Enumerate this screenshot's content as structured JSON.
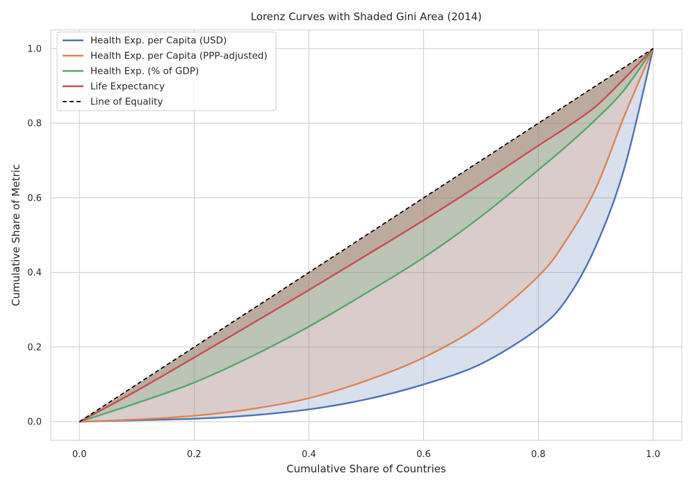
{
  "chart_data": {
    "type": "line",
    "title": "Lorenz Curves with Shaded Gini Area (2014)",
    "xlabel": "Cumulative Share of Countries",
    "ylabel": "Cumulative Share of Metric",
    "xlim": [
      -0.05,
      1.05
    ],
    "ylim": [
      -0.05,
      1.05
    ],
    "xticks": [
      "0.0",
      "0.2",
      "0.4",
      "0.6",
      "0.8",
      "1.0"
    ],
    "yticks": [
      "0.0",
      "0.2",
      "0.4",
      "0.6",
      "0.8",
      "1.0"
    ],
    "grid": true,
    "legend_position": "top-left",
    "x": [
      0.0,
      0.1,
      0.2,
      0.3,
      0.4,
      0.5,
      0.6,
      0.7,
      0.8,
      0.85,
      0.9,
      0.95,
      1.0
    ],
    "series": [
      {
        "name": "Health Exp. per Capita (USD)",
        "color": "#4c72b0",
        "fill": "#4c72b0",
        "values": [
          0.0,
          0.004,
          0.008,
          0.017,
          0.033,
          0.06,
          0.1,
          0.155,
          0.25,
          0.33,
          0.47,
          0.68,
          1.0
        ]
      },
      {
        "name": "Health Exp. per Capita (PPP-adjusted)",
        "color": "#dd8452",
        "fill": "#dd8452",
        "values": [
          0.0,
          0.006,
          0.016,
          0.034,
          0.063,
          0.11,
          0.172,
          0.26,
          0.39,
          0.49,
          0.625,
          0.82,
          1.0
        ]
      },
      {
        "name": "Health Exp. (% of GDP)",
        "color": "#55a868",
        "fill": "#55a868",
        "values": [
          0.0,
          0.05,
          0.105,
          0.175,
          0.255,
          0.345,
          0.44,
          0.55,
          0.675,
          0.74,
          0.81,
          0.89,
          1.0
        ]
      },
      {
        "name": "Life Expectancy",
        "color": "#c44e52",
        "fill": "#c44e52",
        "values": [
          0.0,
          0.083,
          0.172,
          0.262,
          0.353,
          0.446,
          0.54,
          0.638,
          0.74,
          0.79,
          0.845,
          0.92,
          1.0
        ]
      },
      {
        "name": "Line of Equality",
        "color": "#000000",
        "dashed": true,
        "values": [
          0.0,
          0.1,
          0.2,
          0.3,
          0.4,
          0.5,
          0.6,
          0.7,
          0.8,
          0.85,
          0.9,
          0.95,
          1.0
        ]
      }
    ]
  }
}
